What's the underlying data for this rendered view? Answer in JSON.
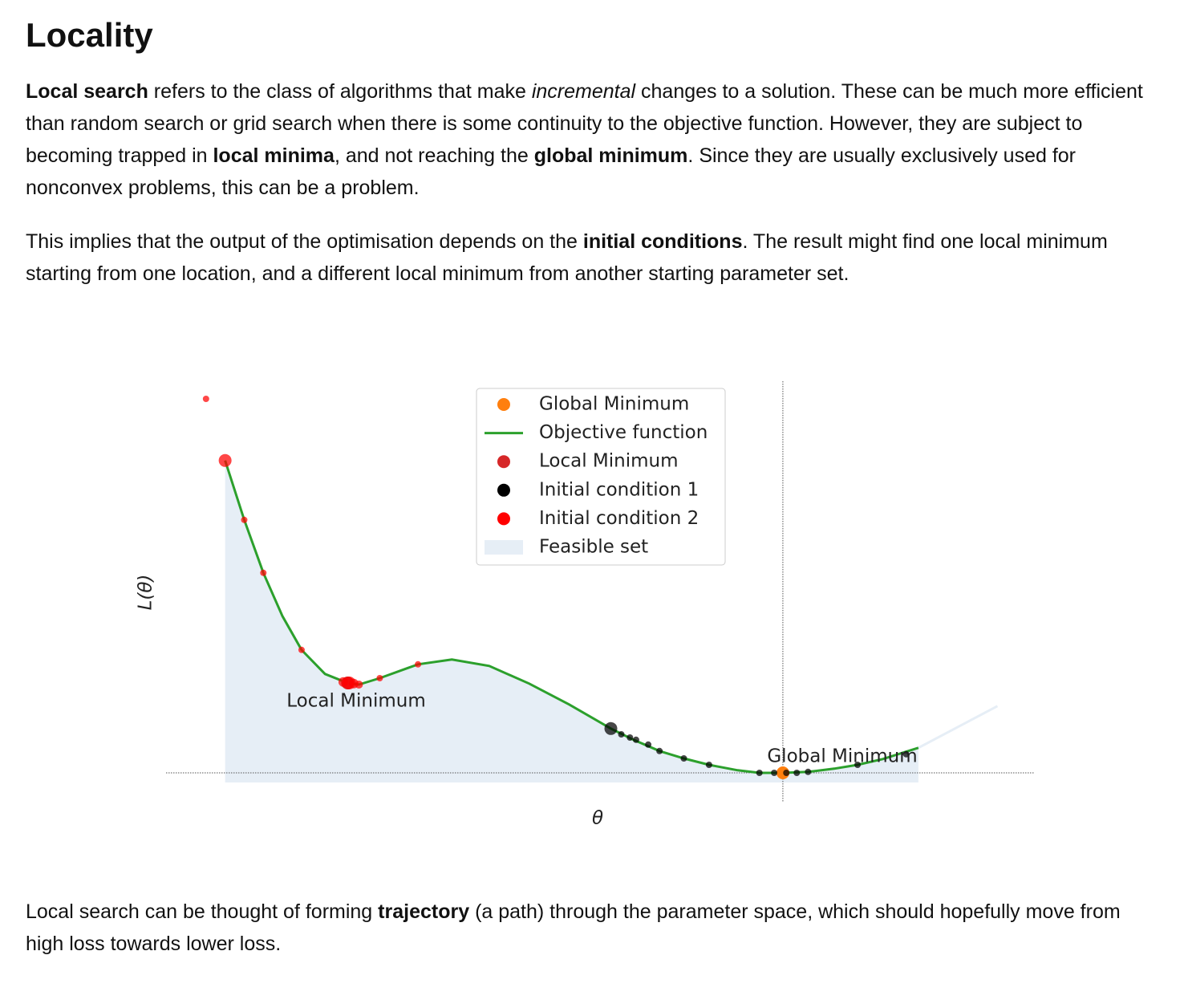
{
  "title": "Locality",
  "paragraphs": [
    [
      {
        "text": "Local search",
        "style": "bold"
      },
      {
        "text": " refers to the class of algorithms that make "
      },
      {
        "text": "incremental",
        "style": "italic"
      },
      {
        "text": " changes to a solution. These can be much more efficient than random search or grid search when there is some continuity to the objective function. However, they are subject to becoming trapped in "
      },
      {
        "text": "local minima",
        "style": "bold"
      },
      {
        "text": ", and not reaching the "
      },
      {
        "text": "global minimum",
        "style": "bold"
      },
      {
        "text": ". Since they are usually exclusively used for nonconvex problems, this can be a problem."
      }
    ],
    [
      {
        "text": "This implies that the output of the optimisation depends on the "
      },
      {
        "text": "initial conditions",
        "style": "bold"
      },
      {
        "text": ". The result might find one local minimum starting from one location, and a different local minimum from another starting parameter set."
      }
    ],
    [
      {
        "text": "Local search can be thought of forming "
      },
      {
        "text": "trajectory",
        "style": "bold"
      },
      {
        "text": " (a path) through the parameter space, which should hopefully move from high loss towards lower loss."
      }
    ]
  ],
  "chart_data": {
    "type": "line",
    "x_label": "θ",
    "y_label": "L(θ)",
    "xlim": [
      0,
      10
    ],
    "ylim": [
      -1,
      12.5
    ],
    "annotations": [
      {
        "text": "Local Minimum"
      },
      {
        "text": "Global Minimum"
      }
    ],
    "series": [
      {
        "name": "Global Minimum",
        "kind": "point",
        "color": "#ff7f0e",
        "x": [
          7.1
        ],
        "values": [
          0
        ]
      },
      {
        "name": "Objective function",
        "kind": "line",
        "color": "#2ca02c",
        "x": [
          0.68,
          0.9,
          1.12,
          1.34,
          1.56,
          1.83,
          2.09,
          2.22,
          2.46,
          2.9,
          3.29,
          3.72,
          4.18,
          4.64,
          5.12,
          5.38,
          5.68,
          5.96,
          6.25,
          6.58,
          6.83,
          7.1,
          7.39,
          7.69,
          7.96,
          8.25,
          8.66,
          9.08,
          9.57
        ],
        "values": [
          9.73,
          7.88,
          6.23,
          4.88,
          3.83,
          3.08,
          2.8,
          2.75,
          2.95,
          3.38,
          3.53,
          3.33,
          2.78,
          2.13,
          1.38,
          1.03,
          0.68,
          0.45,
          0.25,
          0.08,
          0,
          0,
          0.03,
          0.13,
          0.25,
          0.43,
          0.78,
          1.38,
          2.08
        ]
      },
      {
        "name": "Local Minimum",
        "kind": "point",
        "color": "#d62728",
        "x": [
          2.09
        ],
        "values": [
          2.8
        ]
      },
      {
        "name": "Initial condition 1",
        "kind": "scatter",
        "color": "#000000",
        "x": [
          5.12,
          5.24,
          5.34,
          5.41,
          5.55,
          5.68,
          5.96,
          6.25,
          6.83,
          7.0,
          7.14,
          7.26,
          7.39,
          7.96,
          8.52
        ],
        "values": [
          1.38,
          1.2,
          1.1,
          1.03,
          0.88,
          0.68,
          0.45,
          0.25,
          0,
          0,
          0,
          0,
          0.03,
          0.25,
          0.58
        ],
        "sizes": [
          8,
          4,
          4,
          4,
          4,
          4,
          4,
          4,
          4,
          4,
          4,
          4,
          4,
          4,
          4
        ]
      },
      {
        "name": "Initial condition 2",
        "kind": "scatter",
        "color": "#ff0000",
        "x": [
          0.46,
          0.68,
          0.9,
          1.12,
          1.56,
          2.04,
          2.11,
          2.16,
          2.22,
          2.46,
          2.9
        ],
        "values": [
          11.65,
          9.73,
          7.88,
          6.23,
          3.83,
          2.83,
          2.8,
          2.78,
          2.75,
          2.95,
          3.38
        ],
        "sizes": [
          4,
          8,
          4,
          4,
          4,
          6,
          8,
          6,
          5,
          4,
          4
        ]
      },
      {
        "name": "Feasible set",
        "kind": "area",
        "color": "#e6eef6",
        "x": [
          0.68,
          8.66
        ],
        "base": -0.3
      }
    ]
  }
}
